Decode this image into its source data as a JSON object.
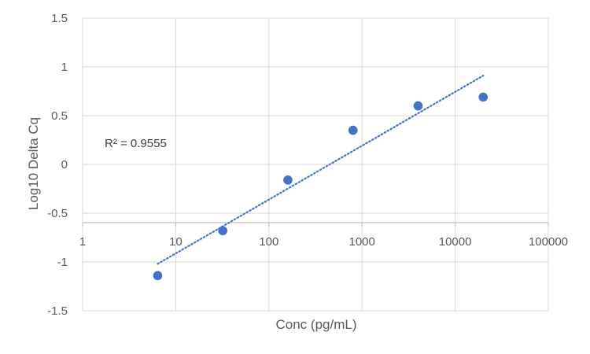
{
  "chart_data": {
    "type": "scatter",
    "title": "",
    "xlabel": "Conc (pg/mL)",
    "ylabel": "Log10 Delta Cq",
    "x_scale": "log10",
    "xlim": [
      1,
      100000
    ],
    "ylim": [
      -1.5,
      1.5
    ],
    "x_ticks": [
      "1",
      "10",
      "100",
      "1000",
      "10000",
      "100000"
    ],
    "y_ticks": [
      "1.5",
      "1",
      "0.5",
      "0",
      "-0.5",
      "-1",
      "-1.5"
    ],
    "grid": true,
    "legend": "none",
    "series": [
      {
        "x": [
          6.4,
          32,
          160,
          800,
          4000,
          20000
        ],
        "y": [
          -1.14,
          -0.68,
          -0.16,
          0.35,
          0.6,
          0.69
        ],
        "color": "#4472C4"
      }
    ],
    "trendline": {
      "type": "log-linear",
      "x_start": 6.4,
      "x_end": 20000,
      "y_start": -1.02,
      "y_end": 0.91,
      "color": "#4472C4",
      "style": "dotted"
    },
    "annotation": "R² = 0.9555"
  }
}
